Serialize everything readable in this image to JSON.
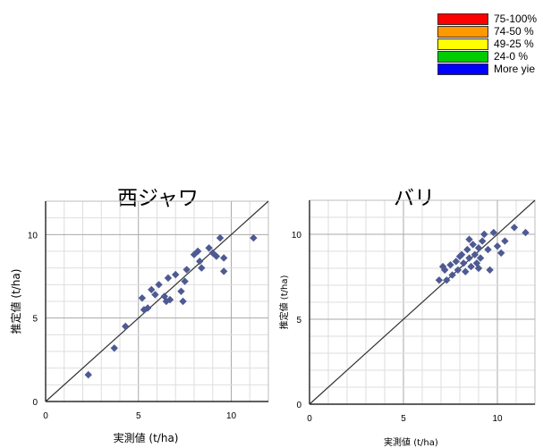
{
  "legend": {
    "items": [
      {
        "label": "75-100%",
        "color": "#ff0000"
      },
      {
        "label": "74-50 %",
        "color": "#ff9900"
      },
      {
        "label": "49-25 %",
        "color": "#ffff00"
      },
      {
        "label": "24-0 %",
        "color": "#00cc00"
      },
      {
        "label": "More yie",
        "color": "#0000ff"
      }
    ]
  },
  "chart_data": [
    {
      "type": "scatter",
      "title": "西ジャワ",
      "xlabel": "実測値 (t/ha)",
      "ylabel": "推定値 (t/ha)",
      "xlim": [
        0,
        12
      ],
      "ylim": [
        0,
        12
      ],
      "xticks": [
        "0",
        "5",
        "10"
      ],
      "yticks": [
        "0",
        "5",
        "10"
      ],
      "grid": true,
      "reference_line": "y = x",
      "marker_color": "#4e5a92",
      "points": [
        [
          2.3,
          1.6
        ],
        [
          3.7,
          3.2
        ],
        [
          4.3,
          4.5
        ],
        [
          5.2,
          6.2
        ],
        [
          5.3,
          5.5
        ],
        [
          5.5,
          5.6
        ],
        [
          5.7,
          6.7
        ],
        [
          5.9,
          6.4
        ],
        [
          6.1,
          7.0
        ],
        [
          6.4,
          6.3
        ],
        [
          6.5,
          6.0
        ],
        [
          6.6,
          7.4
        ],
        [
          6.7,
          6.1
        ],
        [
          7.0,
          7.6
        ],
        [
          7.3,
          6.6
        ],
        [
          7.4,
          6.0
        ],
        [
          7.5,
          7.2
        ],
        [
          7.6,
          7.9
        ],
        [
          8.0,
          8.8
        ],
        [
          8.2,
          9.0
        ],
        [
          8.3,
          8.4
        ],
        [
          8.4,
          8.0
        ],
        [
          8.8,
          9.2
        ],
        [
          9.0,
          8.9
        ],
        [
          9.2,
          8.7
        ],
        [
          9.4,
          9.8
        ],
        [
          9.6,
          8.6
        ],
        [
          9.6,
          7.8
        ],
        [
          11.2,
          9.8
        ]
      ]
    },
    {
      "type": "scatter",
      "title": "バリ",
      "xlabel": "実測値 (t/ha)",
      "ylabel": "推定値 (t/ha)",
      "xlim": [
        0,
        12
      ],
      "ylim": [
        0,
        12
      ],
      "xticks": [
        "0",
        "5",
        "10"
      ],
      "yticks": [
        "0",
        "5",
        "10"
      ],
      "grid": true,
      "reference_line": "y = x",
      "marker_color": "#4e5a92",
      "points": [
        [
          6.9,
          7.3
        ],
        [
          7.1,
          8.1
        ],
        [
          7.2,
          7.9
        ],
        [
          7.3,
          7.3
        ],
        [
          7.5,
          8.2
        ],
        [
          7.6,
          7.6
        ],
        [
          7.8,
          8.4
        ],
        [
          7.9,
          7.9
        ],
        [
          8.0,
          8.7
        ],
        [
          8.2,
          8.3
        ],
        [
          8.3,
          7.8
        ],
        [
          8.4,
          9.1
        ],
        [
          8.5,
          8.6
        ],
        [
          8.6,
          8.1
        ],
        [
          8.7,
          9.4
        ],
        [
          8.8,
          8.8
        ],
        [
          8.9,
          8.3
        ],
        [
          9.0,
          9.2
        ],
        [
          9.1,
          8.6
        ],
        [
          9.2,
          9.6
        ],
        [
          9.3,
          10.0
        ],
        [
          9.5,
          9.1
        ],
        [
          9.6,
          7.9
        ],
        [
          9.8,
          10.1
        ],
        [
          10.0,
          9.3
        ],
        [
          10.2,
          8.9
        ],
        [
          10.4,
          9.6
        ],
        [
          10.9,
          10.4
        ],
        [
          11.5,
          10.1
        ],
        [
          8.5,
          9.7
        ],
        [
          9.0,
          8.0
        ],
        [
          8.1,
          8.8
        ]
      ]
    }
  ]
}
